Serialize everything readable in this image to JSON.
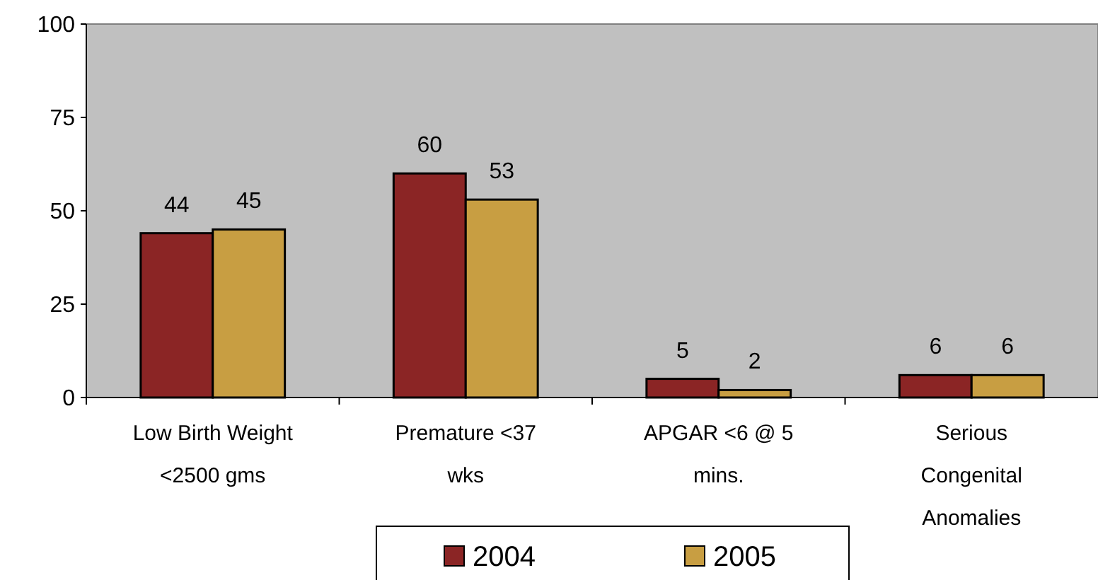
{
  "chart_data": {
    "type": "bar",
    "categories": [
      "Low Birth Weight <2500 gms",
      "Premature <37 wks",
      "APGAR <6 @ 5 mins.",
      "Serious Congenital Anomalies"
    ],
    "series": [
      {
        "name": "2004",
        "color": "#8b2525",
        "values": [
          44,
          60,
          5,
          6
        ]
      },
      {
        "name": "2005",
        "color": "#c89e42",
        "values": [
          45,
          53,
          2,
          6
        ]
      }
    ],
    "ylim": [
      0,
      100
    ],
    "yticks": [
      0,
      25,
      50,
      75,
      100
    ],
    "grid": false,
    "legend": "bottom",
    "data_labels": true
  }
}
